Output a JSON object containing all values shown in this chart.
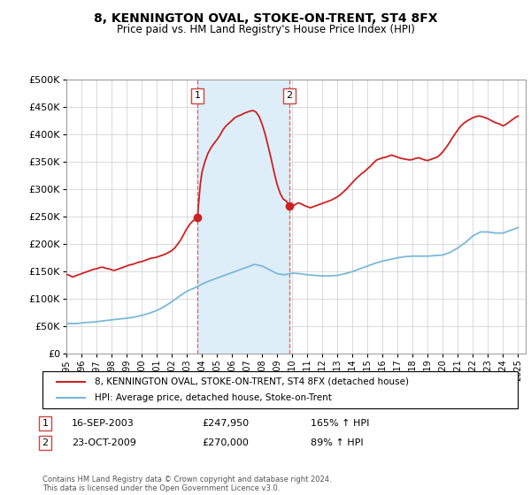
{
  "title": "8, KENNINGTON OVAL, STOKE-ON-TRENT, ST4 8FX",
  "subtitle": "Price paid vs. HM Land Registry's House Price Index (HPI)",
  "legend_line1": "8, KENNINGTON OVAL, STOKE-ON-TRENT, ST4 8FX (detached house)",
  "legend_line2": "HPI: Average price, detached house, Stoke-on-Trent",
  "footer": "Contains HM Land Registry data © Crown copyright and database right 2024.\nThis data is licensed under the Open Government Licence v3.0.",
  "sale1_label": "1",
  "sale1_date": "16-SEP-2003",
  "sale1_price": "£247,950",
  "sale1_hpi": "165% ↑ HPI",
  "sale1_date_num": 2003.71,
  "sale1_price_val": 247950,
  "sale2_label": "2",
  "sale2_date": "23-OCT-2009",
  "sale2_price": "£270,000",
  "sale2_hpi": "89% ↑ HPI",
  "sale2_date_num": 2009.81,
  "sale2_price_val": 270000,
  "hpi_color": "#7ab8d9",
  "price_color": "#cc2222",
  "sale_marker_color": "#cc2222",
  "vline_color": "#cc4444",
  "shade_color": "#ddeef8",
  "ylim": [
    0,
    500000
  ],
  "yticks": [
    0,
    50000,
    100000,
    150000,
    200000,
    250000,
    300000,
    350000,
    400000,
    450000,
    500000
  ],
  "xmin": 1995,
  "xmax": 2025.5,
  "hpi_data": [
    [
      1995.0,
      55000
    ],
    [
      1995.3,
      55500
    ],
    [
      1995.6,
      55000
    ],
    [
      1995.9,
      56000
    ],
    [
      1996.2,
      57000
    ],
    [
      1996.5,
      57500
    ],
    [
      1996.8,
      58000
    ],
    [
      1997.1,
      59000
    ],
    [
      1997.4,
      60000
    ],
    [
      1997.7,
      61000
    ],
    [
      1998.0,
      62000
    ],
    [
      1998.5,
      63500
    ],
    [
      1999.0,
      65000
    ],
    [
      1999.5,
      67000
    ],
    [
      2000.0,
      70000
    ],
    [
      2000.5,
      74000
    ],
    [
      2001.0,
      79000
    ],
    [
      2001.5,
      86000
    ],
    [
      2002.0,
      95000
    ],
    [
      2002.5,
      105000
    ],
    [
      2003.0,
      114000
    ],
    [
      2003.5,
      120000
    ],
    [
      2004.0,
      127000
    ],
    [
      2004.5,
      133000
    ],
    [
      2005.0,
      138000
    ],
    [
      2005.5,
      143000
    ],
    [
      2006.0,
      148000
    ],
    [
      2006.5,
      153000
    ],
    [
      2007.0,
      158000
    ],
    [
      2007.5,
      163000
    ],
    [
      2008.0,
      160000
    ],
    [
      2008.5,
      153000
    ],
    [
      2009.0,
      146000
    ],
    [
      2009.5,
      144000
    ],
    [
      2010.0,
      147000
    ],
    [
      2010.5,
      146000
    ],
    [
      2011.0,
      144000
    ],
    [
      2011.5,
      143000
    ],
    [
      2012.0,
      142000
    ],
    [
      2012.5,
      142000
    ],
    [
      2013.0,
      143000
    ],
    [
      2013.5,
      146000
    ],
    [
      2014.0,
      150000
    ],
    [
      2014.5,
      155000
    ],
    [
      2015.0,
      160000
    ],
    [
      2015.5,
      165000
    ],
    [
      2016.0,
      169000
    ],
    [
      2016.5,
      172000
    ],
    [
      2017.0,
      175000
    ],
    [
      2017.5,
      177000
    ],
    [
      2018.0,
      178000
    ],
    [
      2018.5,
      178000
    ],
    [
      2019.0,
      178000
    ],
    [
      2019.5,
      179000
    ],
    [
      2020.0,
      180000
    ],
    [
      2020.5,
      185000
    ],
    [
      2021.0,
      193000
    ],
    [
      2021.5,
      203000
    ],
    [
      2022.0,
      215000
    ],
    [
      2022.5,
      222000
    ],
    [
      2023.0,
      222000
    ],
    [
      2023.5,
      220000
    ],
    [
      2024.0,
      220000
    ],
    [
      2024.5,
      225000
    ],
    [
      2025.0,
      230000
    ]
  ],
  "price_data_seg1": [
    [
      1995.0,
      145000
    ],
    [
      1995.2,
      143000
    ],
    [
      1995.4,
      140000
    ],
    [
      1995.6,
      142000
    ],
    [
      1995.8,
      144000
    ],
    [
      1996.0,
      146000
    ],
    [
      1996.2,
      148000
    ],
    [
      1996.4,
      150000
    ],
    [
      1996.6,
      152000
    ],
    [
      1996.8,
      154000
    ],
    [
      1997.0,
      155000
    ],
    [
      1997.2,
      157000
    ],
    [
      1997.4,
      158000
    ],
    [
      1997.6,
      156000
    ],
    [
      1997.8,
      155000
    ],
    [
      1998.0,
      153000
    ],
    [
      1998.2,
      152000
    ],
    [
      1998.4,
      154000
    ],
    [
      1998.6,
      156000
    ],
    [
      1998.8,
      158000
    ],
    [
      1999.0,
      160000
    ],
    [
      1999.2,
      162000
    ],
    [
      1999.4,
      163000
    ],
    [
      1999.6,
      165000
    ],
    [
      1999.8,
      167000
    ],
    [
      2000.0,
      168000
    ],
    [
      2000.2,
      170000
    ],
    [
      2000.4,
      172000
    ],
    [
      2000.6,
      174000
    ],
    [
      2000.8,
      175000
    ],
    [
      2001.0,
      176000
    ],
    [
      2001.2,
      178000
    ],
    [
      2001.4,
      180000
    ],
    [
      2001.6,
      182000
    ],
    [
      2001.8,
      185000
    ],
    [
      2002.0,
      188000
    ],
    [
      2002.2,
      193000
    ],
    [
      2002.4,
      200000
    ],
    [
      2002.6,
      208000
    ],
    [
      2002.8,
      218000
    ],
    [
      2003.0,
      228000
    ],
    [
      2003.2,
      236000
    ],
    [
      2003.4,
      242000
    ],
    [
      2003.6,
      246000
    ],
    [
      2003.71,
      247950
    ]
  ],
  "price_data_seg2": [
    [
      2003.71,
      247950
    ],
    [
      2003.8,
      280000
    ],
    [
      2003.9,
      310000
    ],
    [
      2004.0,
      330000
    ],
    [
      2004.2,
      350000
    ],
    [
      2004.4,
      365000
    ],
    [
      2004.6,
      375000
    ],
    [
      2004.8,
      383000
    ],
    [
      2005.0,
      390000
    ],
    [
      2005.2,
      398000
    ],
    [
      2005.4,
      408000
    ],
    [
      2005.6,
      415000
    ],
    [
      2005.8,
      420000
    ],
    [
      2006.0,
      425000
    ],
    [
      2006.2,
      430000
    ],
    [
      2006.4,
      433000
    ],
    [
      2006.6,
      435000
    ],
    [
      2006.8,
      438000
    ],
    [
      2007.0,
      440000
    ],
    [
      2007.2,
      442000
    ],
    [
      2007.4,
      443000
    ],
    [
      2007.6,
      440000
    ],
    [
      2007.8,
      432000
    ],
    [
      2008.0,
      418000
    ],
    [
      2008.2,
      400000
    ],
    [
      2008.4,
      378000
    ],
    [
      2008.6,
      355000
    ],
    [
      2008.8,
      330000
    ],
    [
      2009.0,
      308000
    ],
    [
      2009.2,
      292000
    ],
    [
      2009.4,
      282000
    ],
    [
      2009.6,
      278000
    ],
    [
      2009.81,
      270000
    ],
    [
      2009.9,
      265000
    ],
    [
      2010.0,
      268000
    ],
    [
      2010.2,
      272000
    ],
    [
      2010.4,
      275000
    ],
    [
      2010.6,
      273000
    ],
    [
      2010.8,
      270000
    ],
    [
      2011.0,
      268000
    ],
    [
      2011.2,
      266000
    ],
    [
      2011.4,
      268000
    ],
    [
      2011.6,
      270000
    ],
    [
      2011.8,
      272000
    ],
    [
      2012.0,
      274000
    ],
    [
      2012.2,
      276000
    ],
    [
      2012.4,
      278000
    ],
    [
      2012.6,
      280000
    ],
    [
      2012.8,
      283000
    ],
    [
      2013.0,
      286000
    ],
    [
      2013.2,
      290000
    ],
    [
      2013.4,
      295000
    ],
    [
      2013.6,
      300000
    ],
    [
      2013.8,
      306000
    ],
    [
      2014.0,
      312000
    ],
    [
      2014.2,
      318000
    ],
    [
      2014.4,
      323000
    ],
    [
      2014.6,
      328000
    ],
    [
      2014.8,
      332000
    ],
    [
      2015.0,
      337000
    ],
    [
      2015.2,
      342000
    ],
    [
      2015.4,
      348000
    ],
    [
      2015.6,
      353000
    ],
    [
      2015.8,
      355000
    ],
    [
      2016.0,
      357000
    ],
    [
      2016.2,
      358000
    ],
    [
      2016.4,
      360000
    ],
    [
      2016.6,
      362000
    ],
    [
      2016.8,
      360000
    ],
    [
      2017.0,
      358000
    ],
    [
      2017.2,
      356000
    ],
    [
      2017.4,
      355000
    ],
    [
      2017.6,
      354000
    ],
    [
      2017.8,
      353000
    ],
    [
      2018.0,
      354000
    ],
    [
      2018.2,
      356000
    ],
    [
      2018.4,
      357000
    ],
    [
      2018.6,
      355000
    ],
    [
      2018.8,
      353000
    ],
    [
      2019.0,
      352000
    ],
    [
      2019.2,
      354000
    ],
    [
      2019.4,
      356000
    ],
    [
      2019.6,
      358000
    ],
    [
      2019.8,
      362000
    ],
    [
      2020.0,
      368000
    ],
    [
      2020.2,
      375000
    ],
    [
      2020.4,
      383000
    ],
    [
      2020.6,
      392000
    ],
    [
      2020.8,
      400000
    ],
    [
      2021.0,
      408000
    ],
    [
      2021.2,
      415000
    ],
    [
      2021.4,
      420000
    ],
    [
      2021.6,
      424000
    ],
    [
      2021.8,
      427000
    ],
    [
      2022.0,
      430000
    ],
    [
      2022.2,
      432000
    ],
    [
      2022.4,
      433000
    ],
    [
      2022.6,
      432000
    ],
    [
      2022.8,
      430000
    ],
    [
      2023.0,
      428000
    ],
    [
      2023.2,
      425000
    ],
    [
      2023.4,
      422000
    ],
    [
      2023.6,
      420000
    ],
    [
      2023.8,
      418000
    ],
    [
      2024.0,
      415000
    ],
    [
      2024.2,
      418000
    ],
    [
      2024.4,
      422000
    ],
    [
      2024.6,
      426000
    ],
    [
      2024.8,
      430000
    ],
    [
      2025.0,
      433000
    ]
  ]
}
